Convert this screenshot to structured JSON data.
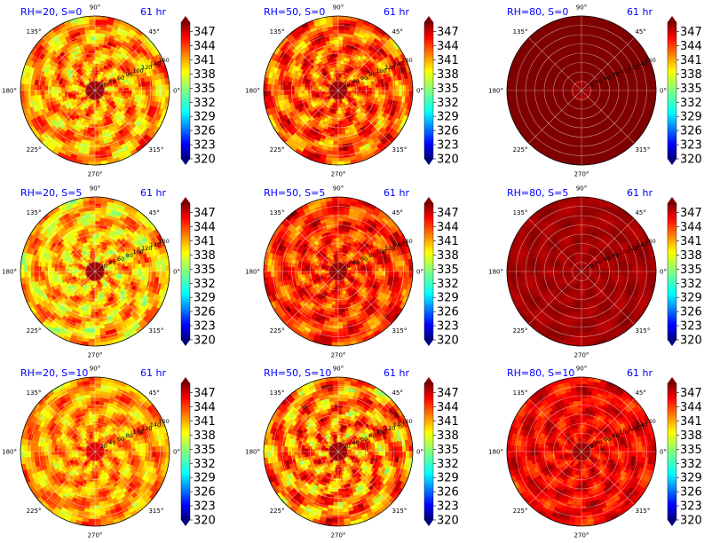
{
  "figure": {
    "time_label": "61 hr"
  },
  "colorbar": {
    "ticks": [
      "347",
      "344",
      "341",
      "338",
      "335",
      "332",
      "329",
      "326",
      "323",
      "320"
    ],
    "colormap": "jet",
    "vmin": 320,
    "vmax": 349
  },
  "chart_data": [
    {
      "type": "heatmap",
      "projection": "polar",
      "title": "RH=20, S=0",
      "time": "61 hr",
      "angle_labels": [
        "90°",
        "45°",
        "0°",
        "315°",
        "270°",
        "225°",
        "180°",
        "135°"
      ],
      "radial_ticks": [
        20,
        40,
        60,
        80,
        100,
        120,
        140,
        160
      ],
      "dominant_range": [
        335,
        347
      ],
      "core": 349,
      "field_seed": 11
    },
    {
      "type": "heatmap",
      "projection": "polar",
      "title": "RH=50, S=0",
      "time": "61 hr",
      "angle_labels": [
        "90°",
        "45°",
        "0°",
        "315°",
        "270°",
        "225°",
        "180°",
        "135°"
      ],
      "radial_ticks": [
        20,
        40,
        60,
        80,
        100,
        120,
        140,
        160
      ],
      "dominant_range": [
        337,
        349
      ],
      "core": 349,
      "field_seed": 23
    },
    {
      "type": "heatmap",
      "projection": "polar",
      "title": "RH=80, S=0",
      "time": "61 hr",
      "angle_labels": [
        "90°",
        "45°",
        "0°",
        "315°",
        "270°",
        "225°",
        "180°",
        "135°"
      ],
      "radial_ticks": [
        20,
        40,
        60,
        80,
        100,
        120,
        140,
        160
      ],
      "dominant_range": [
        349,
        349
      ],
      "core": 349,
      "field_seed": 37
    },
    {
      "type": "heatmap",
      "projection": "polar",
      "title": "RH=20, S=5",
      "time": "61 hr",
      "angle_labels": [
        "90°",
        "45°",
        "0°",
        "315°",
        "270°",
        "225°",
        "180°",
        "135°"
      ],
      "radial_ticks": [
        20,
        40,
        60,
        80,
        100,
        120,
        140,
        160
      ],
      "dominant_range": [
        334,
        346
      ],
      "core": 349,
      "field_seed": 41
    },
    {
      "type": "heatmap",
      "projection": "polar",
      "title": "RH=50, S=5",
      "time": "61 hr",
      "angle_labels": [
        "90°",
        "45°",
        "0°",
        "315°",
        "270°",
        "225°",
        "180°",
        "135°"
      ],
      "radial_ticks": [
        20,
        40,
        60,
        80,
        100,
        120,
        140,
        160
      ],
      "dominant_range": [
        339,
        349
      ],
      "core": 349,
      "field_seed": 53
    },
    {
      "type": "heatmap",
      "projection": "polar",
      "title": "RH=80, S=5",
      "time": "61 hr",
      "angle_labels": [
        "90°",
        "45°",
        "0°",
        "315°",
        "270°",
        "225°",
        "180°",
        "135°"
      ],
      "radial_ticks": [
        20,
        40,
        60,
        80,
        100,
        120,
        140,
        160
      ],
      "dominant_range": [
        347,
        349
      ],
      "core": 349,
      "field_seed": 67
    },
    {
      "type": "heatmap",
      "projection": "polar",
      "title": "RH=20, S=10",
      "time": "61 hr",
      "angle_labels": [
        "90°",
        "45°",
        "0°",
        "315°",
        "270°",
        "225°",
        "180°",
        "135°"
      ],
      "radial_ticks": [
        20,
        40,
        60,
        80,
        100,
        120,
        140,
        160
      ],
      "dominant_range": [
        336,
        346
      ],
      "core": 347,
      "field_seed": 71
    },
    {
      "type": "heatmap",
      "projection": "polar",
      "title": "RH=50, S=10",
      "time": "61 hr",
      "angle_labels": [
        "90°",
        "45°",
        "0°",
        "315°",
        "270°",
        "225°",
        "180°",
        "135°"
      ],
      "radial_ticks": [
        20,
        40,
        60,
        80,
        100,
        120,
        140,
        160
      ],
      "dominant_range": [
        335,
        349
      ],
      "core": 349,
      "field_seed": 83
    },
    {
      "type": "heatmap",
      "projection": "polar",
      "title": "RH=80, S=10",
      "time": "61 hr",
      "angle_labels": [
        "90°",
        "45°",
        "0°",
        "315°",
        "270°",
        "225°",
        "180°",
        "135°"
      ],
      "radial_ticks": [
        20,
        40,
        60,
        80,
        100,
        120,
        140,
        160
      ],
      "dominant_range": [
        342,
        349
      ],
      "core": 349,
      "field_seed": 97
    }
  ]
}
